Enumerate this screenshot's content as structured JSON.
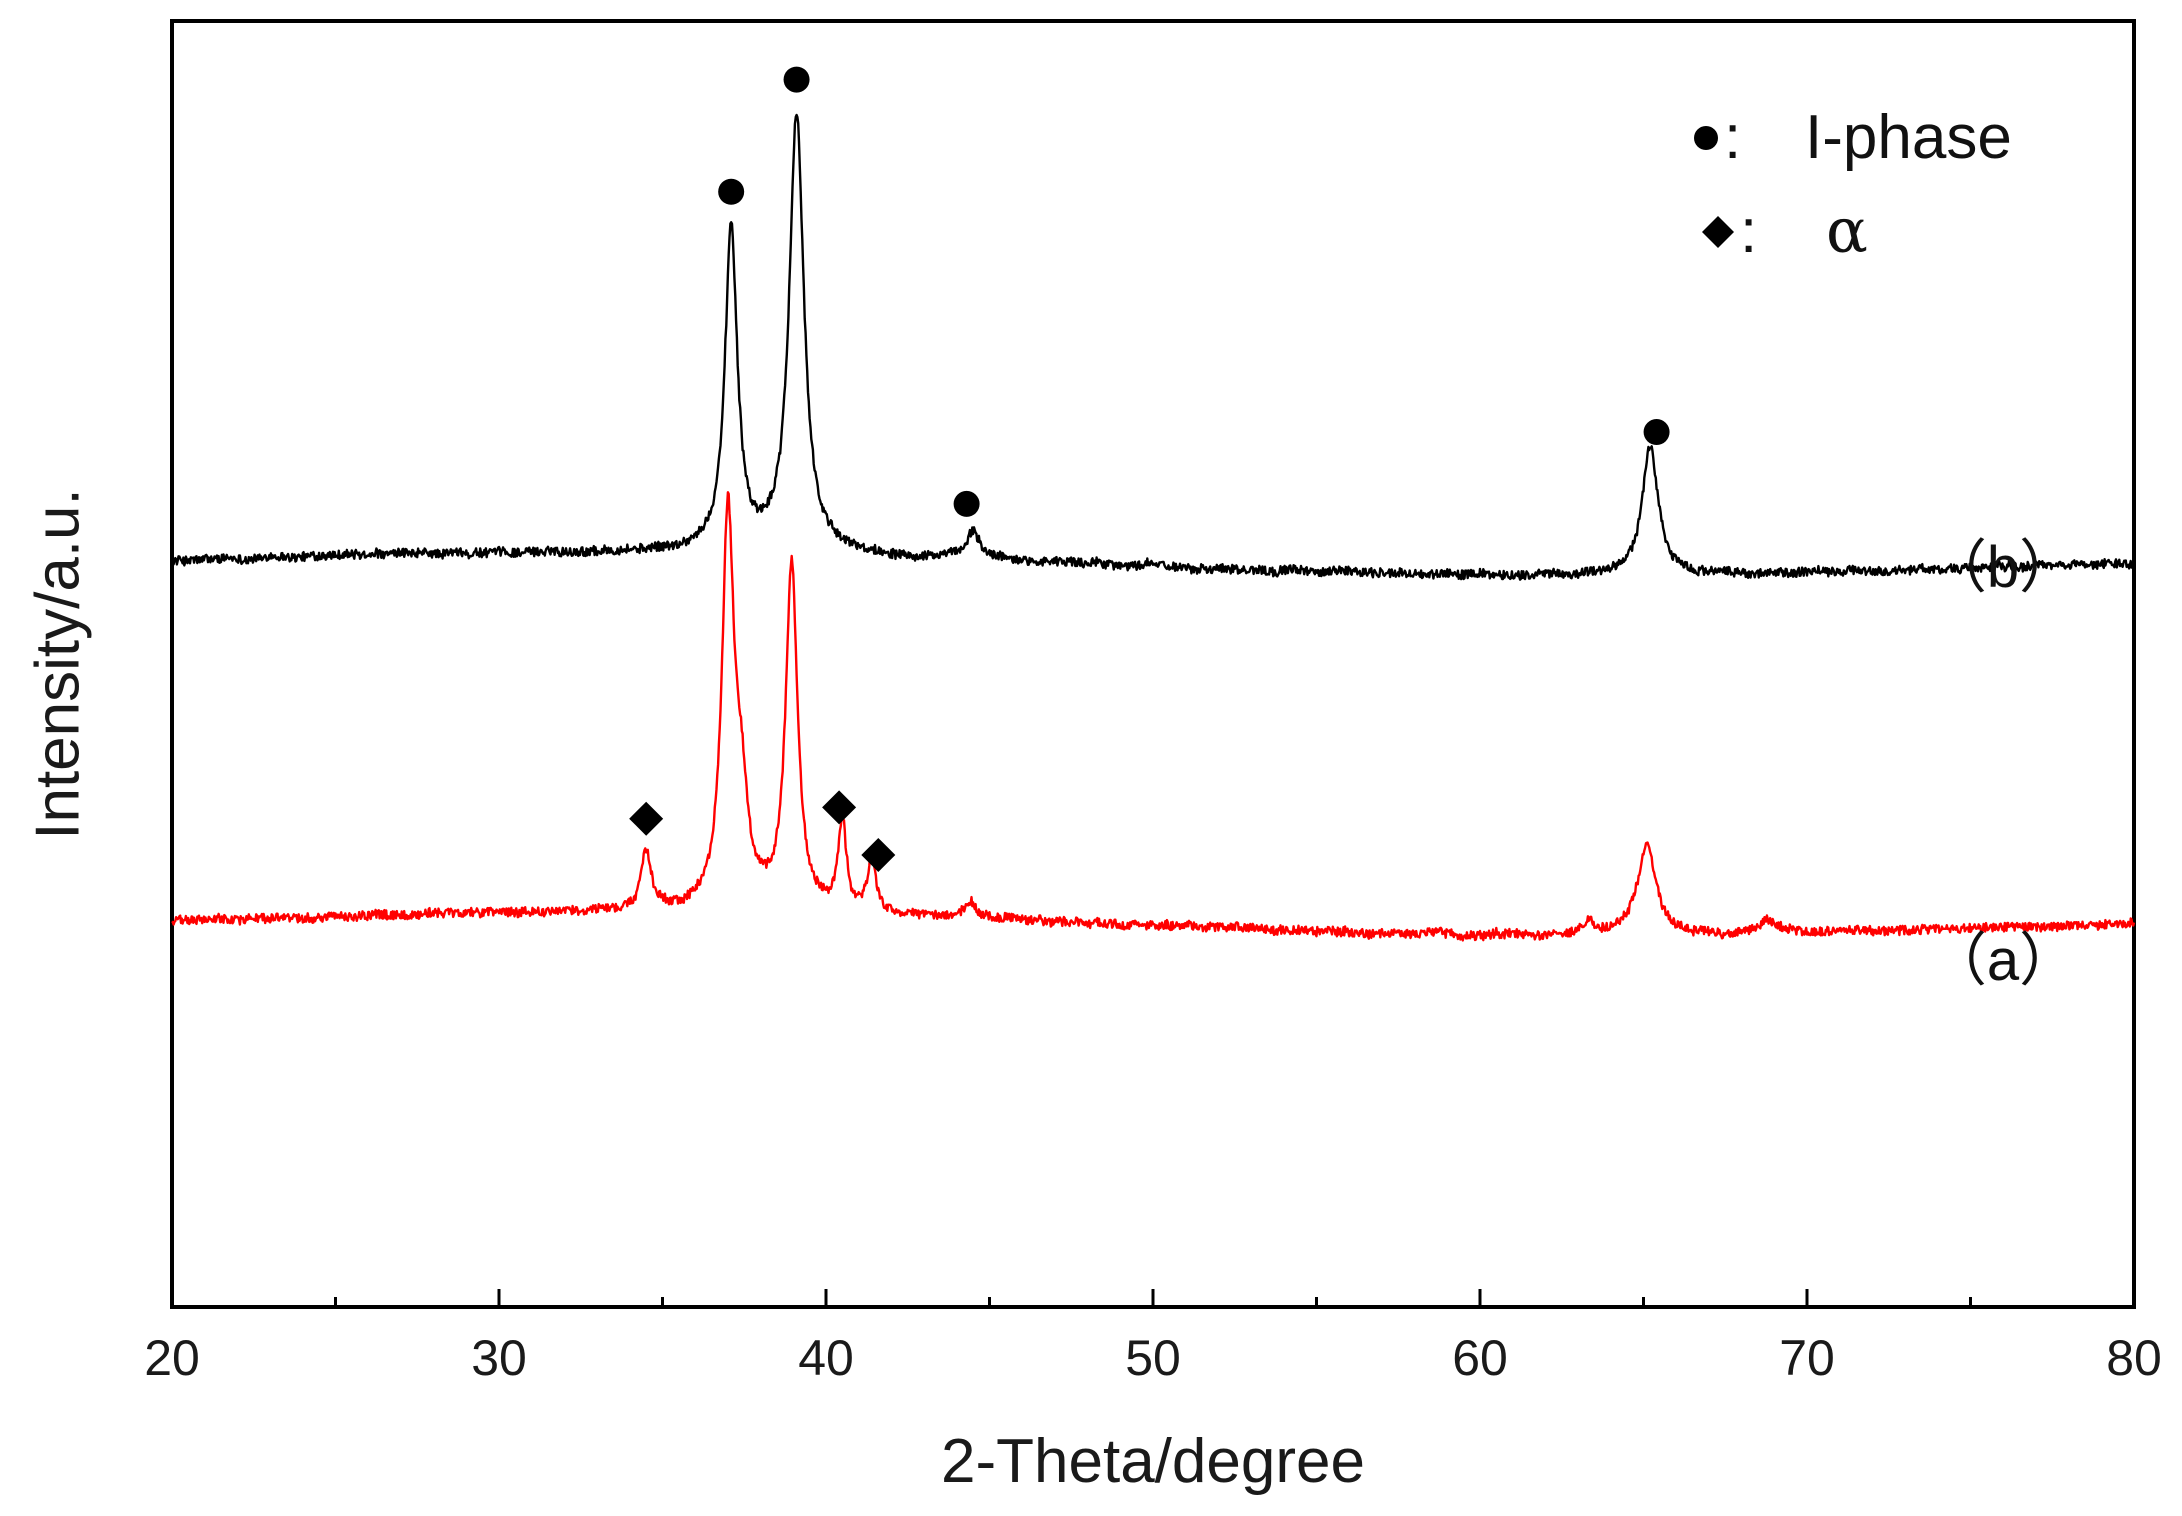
{
  "chart_data": {
    "type": "line",
    "xlabel": "2-Theta/degree",
    "ylabel": "Intensity/a.u.",
    "xlim": [
      20,
      80
    ],
    "x_ticks": [
      "20",
      "30",
      "40",
      "50",
      "60",
      "70",
      "80"
    ],
    "grid": false,
    "legend": {
      "position": "top-right",
      "entries": [
        {
          "marker": "circle",
          "separator": ":",
          "label": "I-phase"
        },
        {
          "marker": "diamond",
          "separator": ":",
          "label": "α"
        }
      ]
    },
    "colors": {
      "a": "#ff0000",
      "b": "#000000",
      "axis": "#000000"
    },
    "series": [
      {
        "name": "（b）",
        "color": "#000000",
        "baseline": 16,
        "peaks": [
          {
            "x": 37.1,
            "height": 50,
            "width": 0.23
          },
          {
            "x": 39.1,
            "height": 68,
            "width": 0.27
          },
          {
            "x": 44.5,
            "height": 4,
            "width": 0.25
          },
          {
            "x": 65.2,
            "height": 20,
            "width": 0.3
          }
        ],
        "markers": [
          {
            "x": 37.1,
            "type": "circle"
          },
          {
            "x": 39.1,
            "type": "circle"
          },
          {
            "x": 44.3,
            "type": "circle"
          },
          {
            "x": 65.4,
            "type": "circle"
          }
        ]
      },
      {
        "name": "（a）",
        "color": "#ff0000",
        "baseline": -40,
        "peaks": [
          {
            "x": 34.5,
            "height": 9,
            "width": 0.18
          },
          {
            "x": 37.0,
            "height": 60,
            "width": 0.22
          },
          {
            "x": 37.4,
            "height": 15,
            "width": 0.25
          },
          {
            "x": 38.95,
            "height": 54,
            "width": 0.22
          },
          {
            "x": 40.5,
            "height": 14,
            "width": 0.15
          },
          {
            "x": 41.4,
            "height": 9,
            "width": 0.15
          },
          {
            "x": 44.4,
            "height": 2.5,
            "width": 0.2
          },
          {
            "x": 63.3,
            "height": 2,
            "width": 0.2
          },
          {
            "x": 65.1,
            "height": 14,
            "width": 0.35
          },
          {
            "x": 68.8,
            "height": 2,
            "width": 0.3
          }
        ],
        "markers": [
          {
            "x": 34.5,
            "type": "diamond"
          },
          {
            "x": 40.4,
            "type": "diamond"
          },
          {
            "x": 41.6,
            "type": "diamond"
          }
        ]
      }
    ]
  }
}
